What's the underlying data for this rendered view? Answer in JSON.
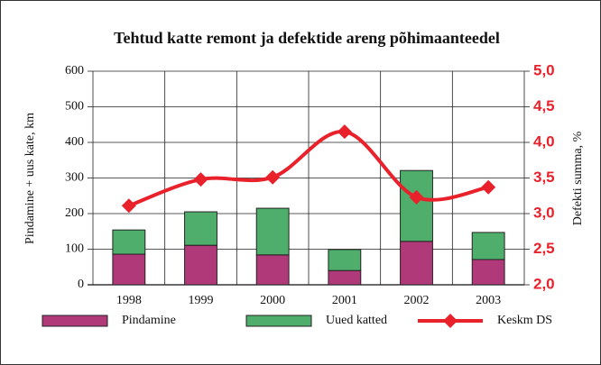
{
  "chart_data": {
    "type": "bar",
    "title": "Tehtud katte remont ja defektide areng põhimaanteedel",
    "ylabel": "Pindamine + uus kate, km",
    "y2label": "Defekti summa, %",
    "categories": [
      "1998",
      "1999",
      "2000",
      "2001",
      "2002",
      "2003"
    ],
    "series": [
      {
        "name": "Pindamine",
        "color": "#b0397a",
        "values": [
          86,
          111,
          84,
          40,
          122,
          71
        ]
      },
      {
        "name": "Uued katted",
        "color": "#4fae6b",
        "values": [
          68,
          94,
          131,
          59,
          199,
          76
        ]
      },
      {
        "name": "Keskm DS",
        "color": "#e8212b",
        "type": "line",
        "axis": "y2",
        "values": [
          3.11,
          3.48,
          3.51,
          4.15,
          3.23,
          3.37
        ]
      }
    ],
    "stacked": true,
    "ylim": [
      0,
      600
    ],
    "yticks": [
      0,
      100,
      200,
      300,
      400,
      500,
      600
    ],
    "y2lim": [
      2.0,
      5.0
    ],
    "y2ticks": [
      {
        "value": 2.0,
        "label": "2,0"
      },
      {
        "value": 2.5,
        "label": "2,5"
      },
      {
        "value": 3.0,
        "label": "3,0"
      },
      {
        "value": 3.5,
        "label": "3,5"
      },
      {
        "value": 4.0,
        "label": "4,0"
      },
      {
        "value": 4.5,
        "label": "4,5"
      },
      {
        "value": 5.0,
        "label": "5,0"
      }
    ],
    "grid": true,
    "legend": "bottom"
  }
}
